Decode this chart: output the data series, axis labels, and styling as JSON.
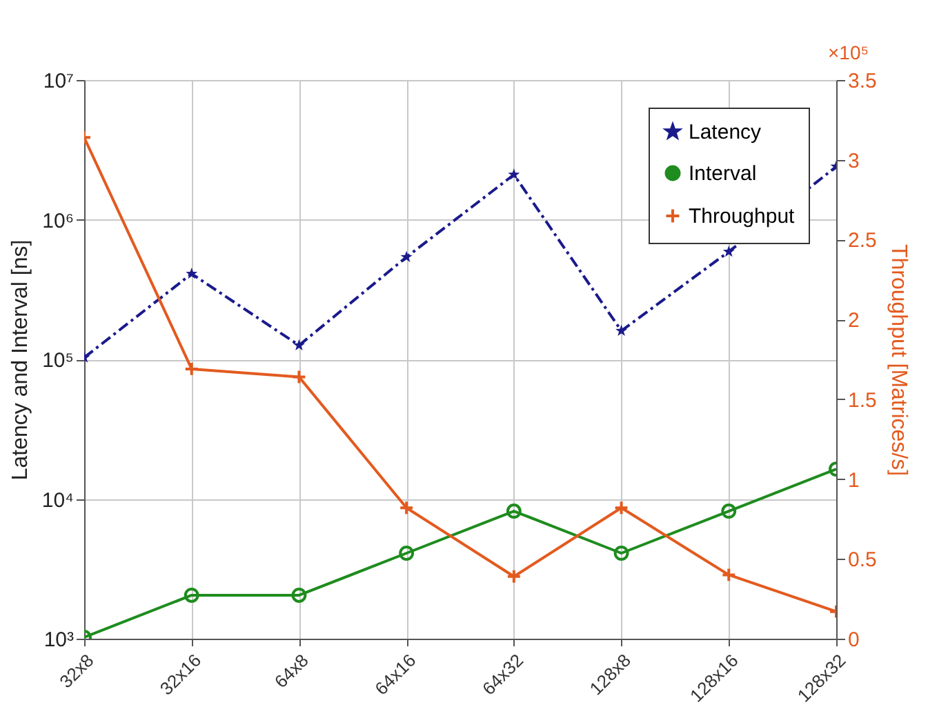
{
  "chart_data": {
    "type": "line",
    "ylabel": "Latency and Interval [ns]",
    "y2label": "Throughput [Matrices/s]",
    "categories": [
      "32x8",
      "32x16",
      "64x8",
      "64x16",
      "64x32",
      "128x8",
      "128x16",
      "128x32"
    ],
    "series": [
      {
        "name": "Latency",
        "color": "#1a1a8c",
        "marker": "star",
        "line_style": "dashed",
        "values": [
          103000,
          410000,
          126000,
          540000,
          2100000,
          160000,
          590000,
          2400000
        ]
      },
      {
        "name": "Interval",
        "color": "#1e8c1e",
        "marker": "circle",
        "line_style": "solid",
        "values": [
          1024,
          2048,
          2048,
          4096,
          8192,
          4096,
          8192,
          16384
        ]
      },
      {
        "name": "Throughput",
        "color": "#e35a1f",
        "marker": "cross",
        "line_style": "solid",
        "axis": "y2",
        "values": [
          3.14,
          1.69,
          1.64,
          0.82,
          0.39,
          0.82,
          0.4,
          0.17
        ]
      }
    ],
    "log": "y",
    "ylim": [
      1000,
      10000000
    ],
    "yticks": [
      {
        "value": 1000,
        "label": "10³"
      },
      {
        "value": 10000,
        "label": "10⁴"
      },
      {
        "value": 100000,
        "label": "10⁵"
      },
      {
        "value": 1000000,
        "label": "10⁶"
      },
      {
        "value": 10000000,
        "label": "10⁷"
      }
    ],
    "y2lim": [
      0,
      3.5
    ],
    "y2ticks": [
      0,
      0.5,
      1,
      1.5,
      2,
      2.5,
      3,
      3.5
    ],
    "annotations": [
      "×10⁵"
    ],
    "grid": true,
    "legend": "top right"
  }
}
